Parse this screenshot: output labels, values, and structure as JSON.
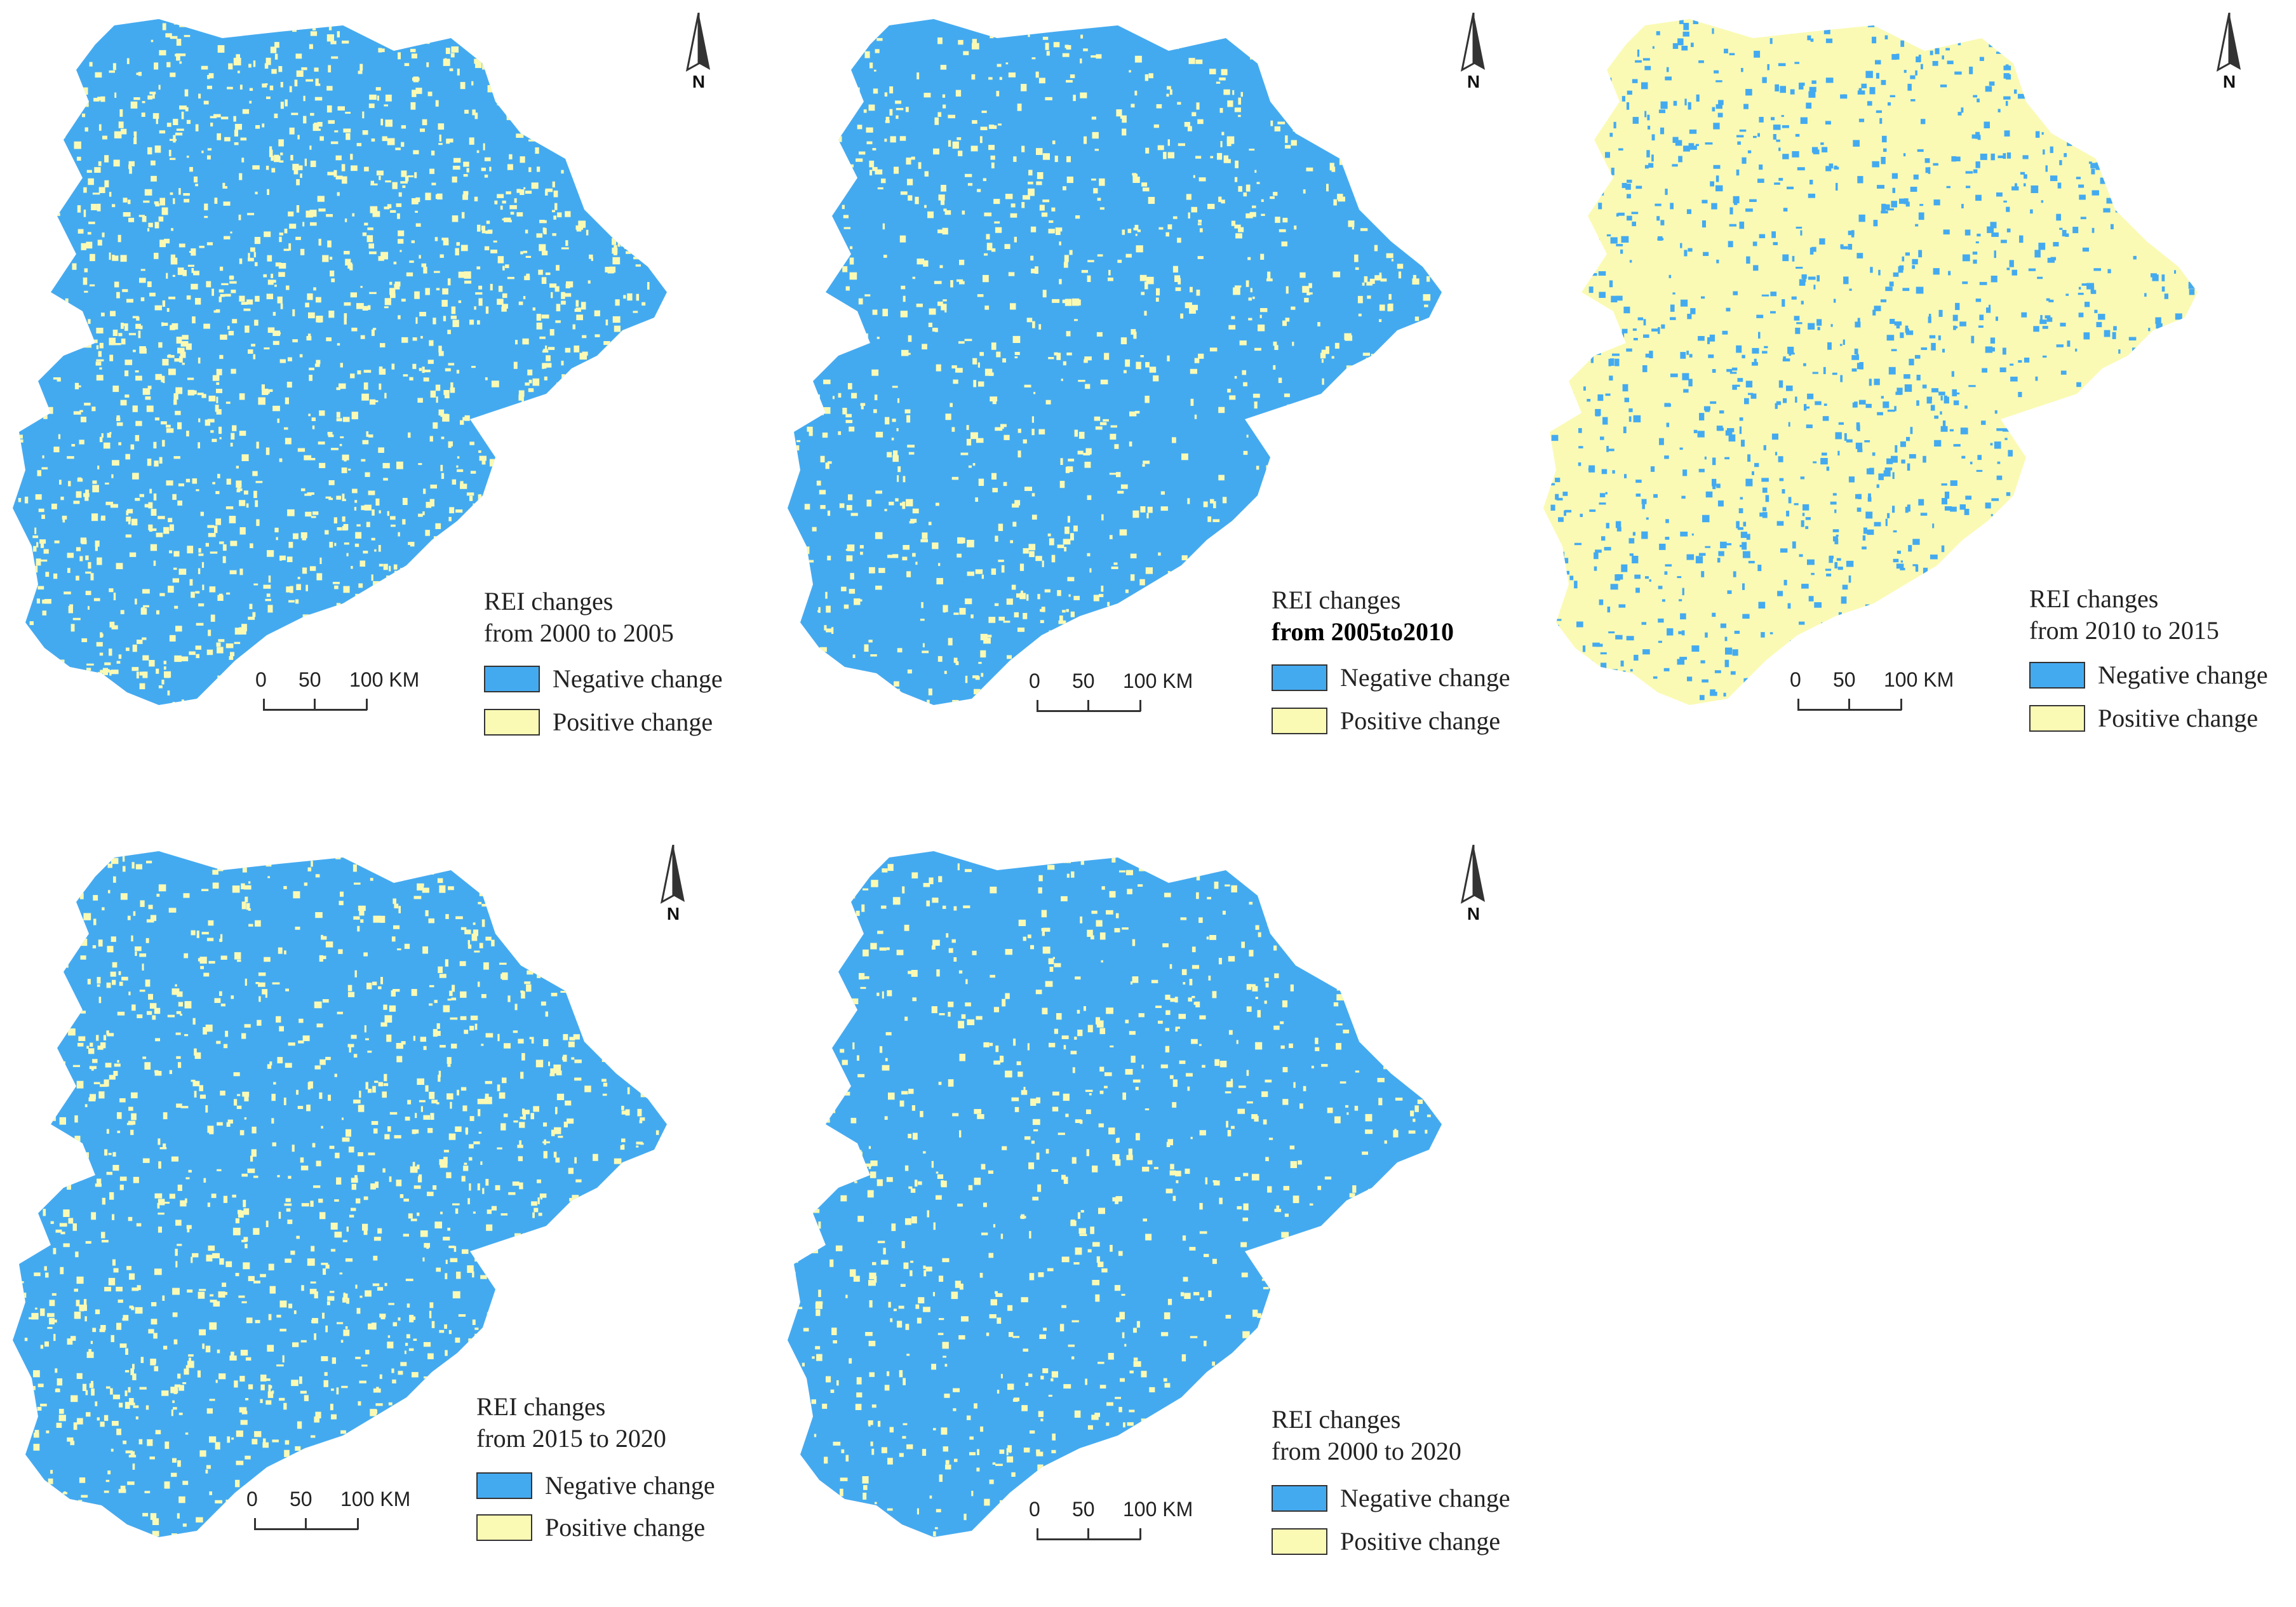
{
  "colors": {
    "negative": "#44aaf0",
    "positive": "#fafab4",
    "outline": "#333333"
  },
  "north_label": "N",
  "scale": {
    "ticks": [
      "0",
      "50",
      "100 KM"
    ]
  },
  "legend": {
    "negative_label": "Negative change",
    "positive_label": "Positive change"
  },
  "panels": [
    {
      "title": "REI changes",
      "period": "from 2000 to 2005",
      "positive_share": 0.28
    },
    {
      "title": "REI changes",
      "period": "from 2005to2010",
      "positive_share": 0.15
    },
    {
      "title": "REI changes",
      "period": "from 2010 to 2015",
      "positive_share": 0.8
    },
    {
      "title": "REI changes",
      "period": "from 2015 to 2020",
      "positive_share": 0.22
    },
    {
      "title": "REI changes",
      "period": "from 2000 to 2020",
      "positive_share": 0.12
    }
  ]
}
